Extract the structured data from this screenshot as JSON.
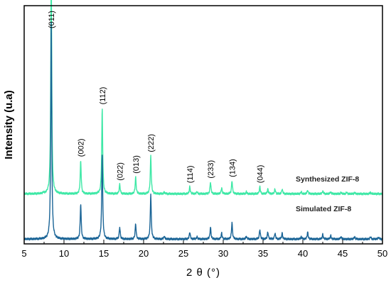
{
  "chart_data": {
    "type": "line",
    "title": "",
    "xlabel": "2 θ (°)",
    "ylabel": "Intensity (u.a)",
    "xlim": [
      5,
      50
    ],
    "xticks": [
      5,
      10,
      15,
      20,
      25,
      30,
      35,
      40,
      45,
      50
    ],
    "yticks_shown": false,
    "grid": false,
    "legend": "none",
    "series": [
      {
        "name": "Synthesized ZIF-8",
        "color": "#3ee8a6",
        "baseline": 0.21,
        "peaks": [
          [
            7.4,
            0.003
          ],
          [
            8.4,
            0.95
          ],
          [
            12.1,
            0.14
          ],
          [
            14.8,
            0.36
          ],
          [
            17.0,
            0.04
          ],
          [
            19.0,
            0.07
          ],
          [
            20.9,
            0.16
          ],
          [
            22.6,
            0.008
          ],
          [
            25.8,
            0.03
          ],
          [
            26.7,
            0.009
          ],
          [
            28.4,
            0.05
          ],
          [
            29.8,
            0.025
          ],
          [
            31.1,
            0.055
          ],
          [
            32.9,
            0.008
          ],
          [
            34.6,
            0.03
          ],
          [
            35.6,
            0.02
          ],
          [
            36.5,
            0.02
          ],
          [
            37.4,
            0.02
          ],
          [
            39.8,
            0.008
          ],
          [
            40.6,
            0.015
          ],
          [
            42.5,
            0.012
          ],
          [
            43.5,
            0.008
          ],
          [
            44.8,
            0.006
          ],
          [
            45.5,
            0.006
          ],
          [
            46.5,
            0.005
          ],
          [
            48.5,
            0.006
          ]
        ]
      },
      {
        "name": "Simulated ZIF-8",
        "color": "#1a6496",
        "baseline": 0.02,
        "peaks": [
          [
            8.4,
            0.93
          ],
          [
            12.1,
            0.15
          ],
          [
            14.8,
            0.36
          ],
          [
            17.0,
            0.05
          ],
          [
            19.0,
            0.065
          ],
          [
            20.9,
            0.19
          ],
          [
            22.6,
            0.012
          ],
          [
            25.8,
            0.03
          ],
          [
            26.7,
            0.01
          ],
          [
            28.4,
            0.05
          ],
          [
            29.8,
            0.025
          ],
          [
            31.1,
            0.07
          ],
          [
            32.9,
            0.012
          ],
          [
            34.6,
            0.04
          ],
          [
            35.6,
            0.03
          ],
          [
            36.5,
            0.025
          ],
          [
            37.4,
            0.025
          ],
          [
            39.8,
            0.01
          ],
          [
            40.6,
            0.03
          ],
          [
            42.5,
            0.02
          ],
          [
            43.5,
            0.015
          ],
          [
            44.8,
            0.01
          ],
          [
            46.5,
            0.01
          ],
          [
            48.5,
            0.01
          ],
          [
            49.5,
            0.008
          ]
        ]
      }
    ],
    "annotations": [
      {
        "text": "(011)",
        "x": 8.4
      },
      {
        "text": "(002)",
        "x": 12.1
      },
      {
        "text": "(112)",
        "x": 14.8
      },
      {
        "text": "(022)",
        "x": 17.0
      },
      {
        "text": "(013)",
        "x": 19.0
      },
      {
        "text": "(222)",
        "x": 20.9
      },
      {
        "text": "(114)",
        "x": 25.8
      },
      {
        "text": "(233)",
        "x": 28.4
      },
      {
        "text": "(134)",
        "x": 31.1
      },
      {
        "text": "(044)",
        "x": 34.6
      }
    ],
    "series_labels": [
      "Synthesized ZIF-8",
      "Simulated ZIF-8"
    ]
  }
}
